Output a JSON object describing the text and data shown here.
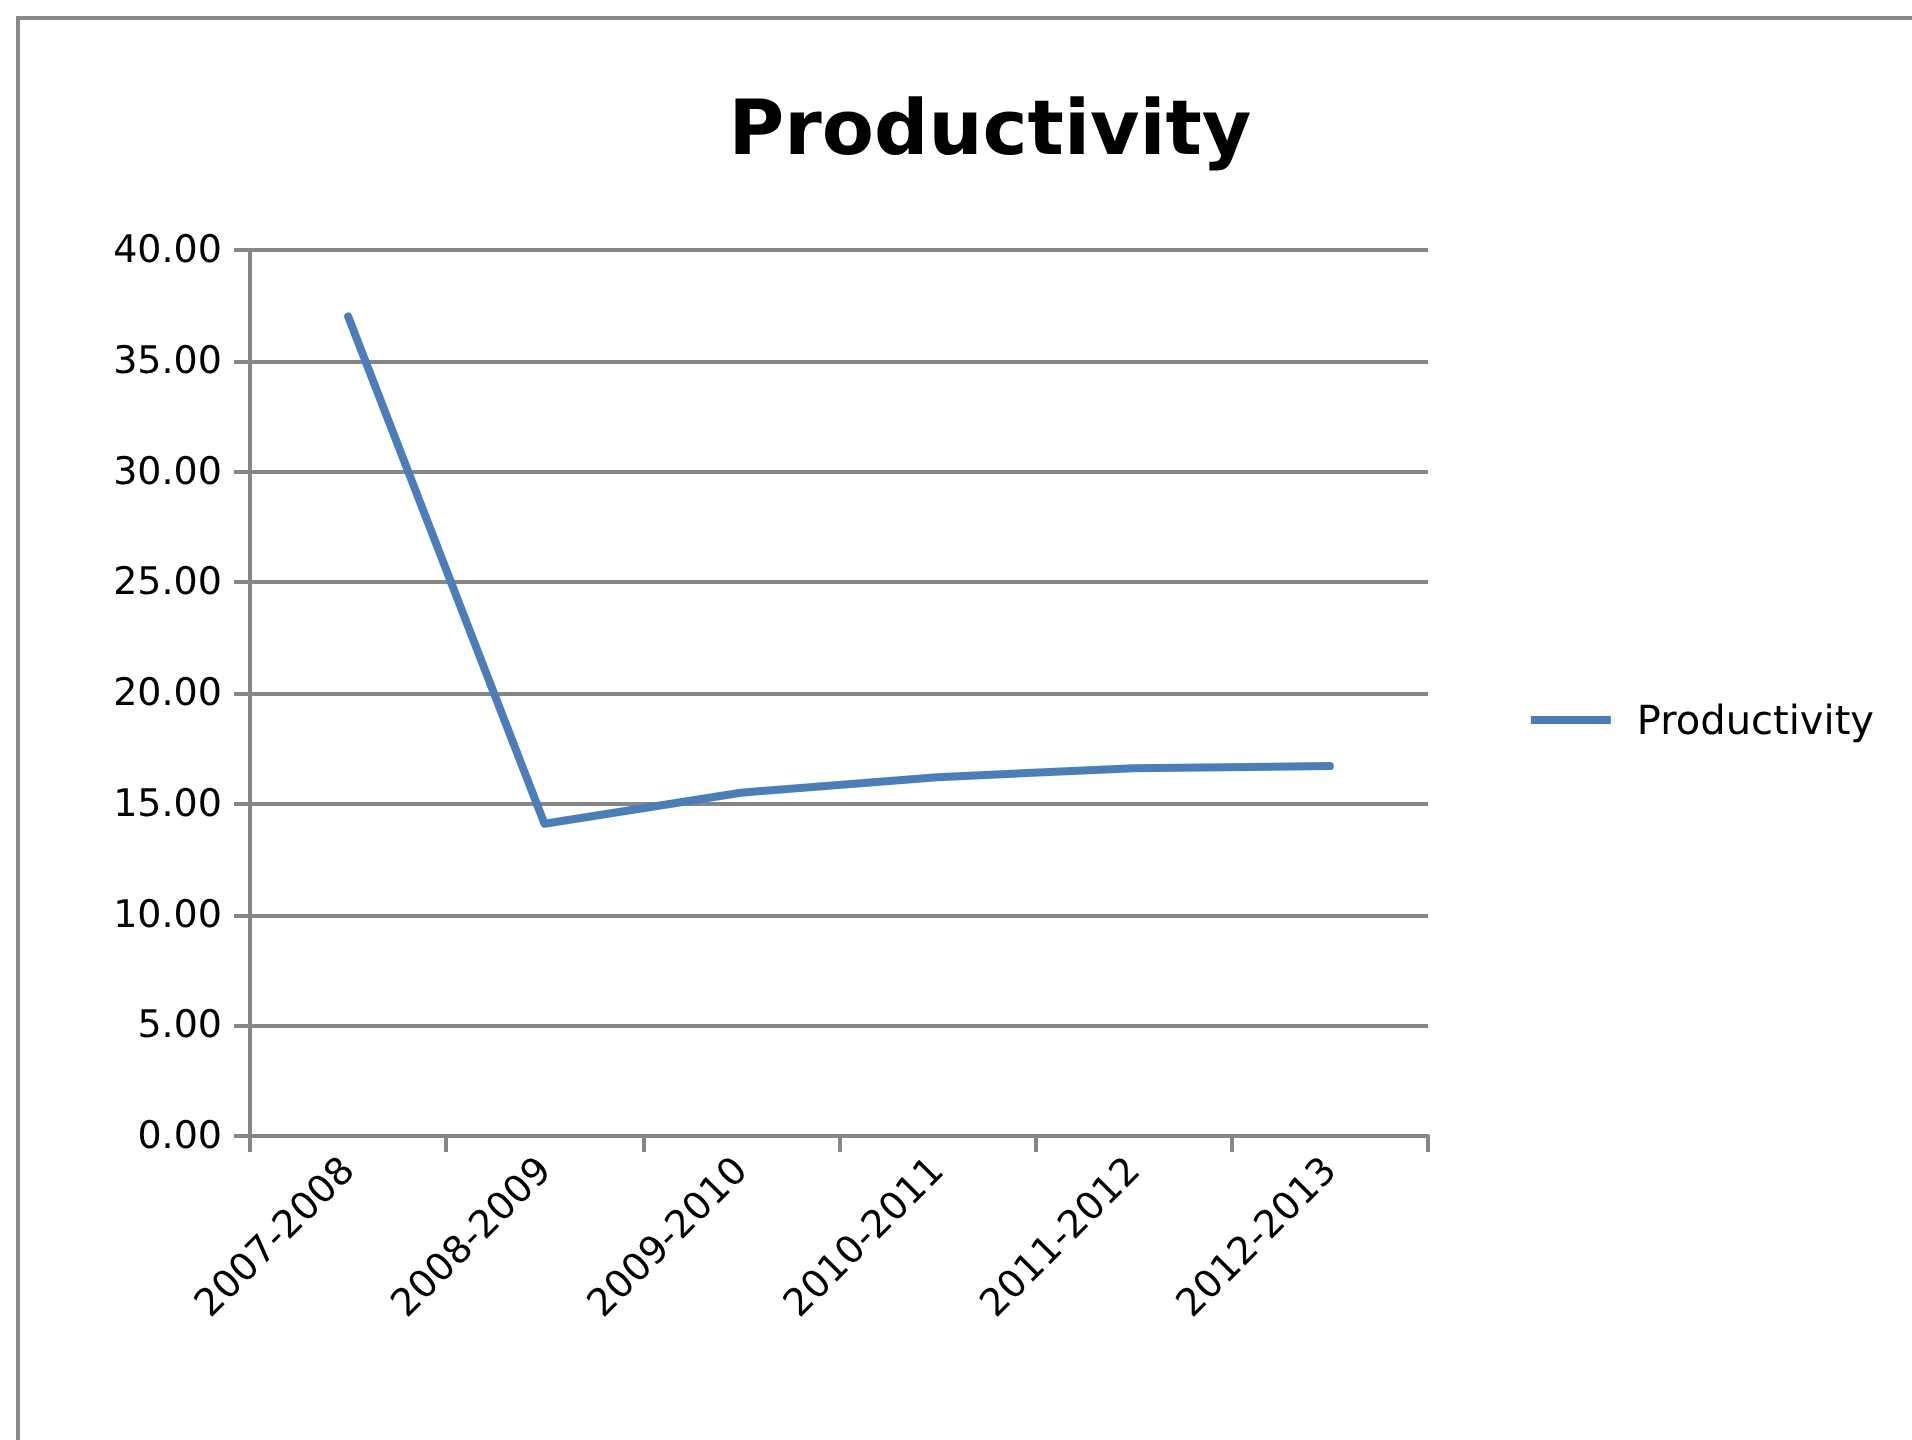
{
  "chart_data": {
    "type": "line",
    "title": "Productivity",
    "categories": [
      "2007-2008",
      "2008-2009",
      "2009-2010",
      "2010-2011",
      "2011-2012",
      "2012-2013"
    ],
    "series": [
      {
        "name": "Productivity",
        "color": "#4a7ebb",
        "values": [
          37.0,
          14.1,
          15.5,
          16.2,
          16.6,
          16.7
        ]
      }
    ],
    "ylim": [
      0,
      40
    ],
    "yticks": [
      {
        "value": 0,
        "label": "0.00"
      },
      {
        "value": 5,
        "label": "5.00"
      },
      {
        "value": 10,
        "label": "10.00"
      },
      {
        "value": 15,
        "label": "15.00"
      },
      {
        "value": 20,
        "label": "20.00"
      },
      {
        "value": 25,
        "label": "25.00"
      },
      {
        "value": 30,
        "label": "30.00"
      },
      {
        "value": 35,
        "label": "35.00"
      },
      {
        "value": 40,
        "label": "40.00"
      }
    ],
    "grid": "y",
    "legend": "right",
    "marker": "none",
    "line_style": "solid"
  }
}
